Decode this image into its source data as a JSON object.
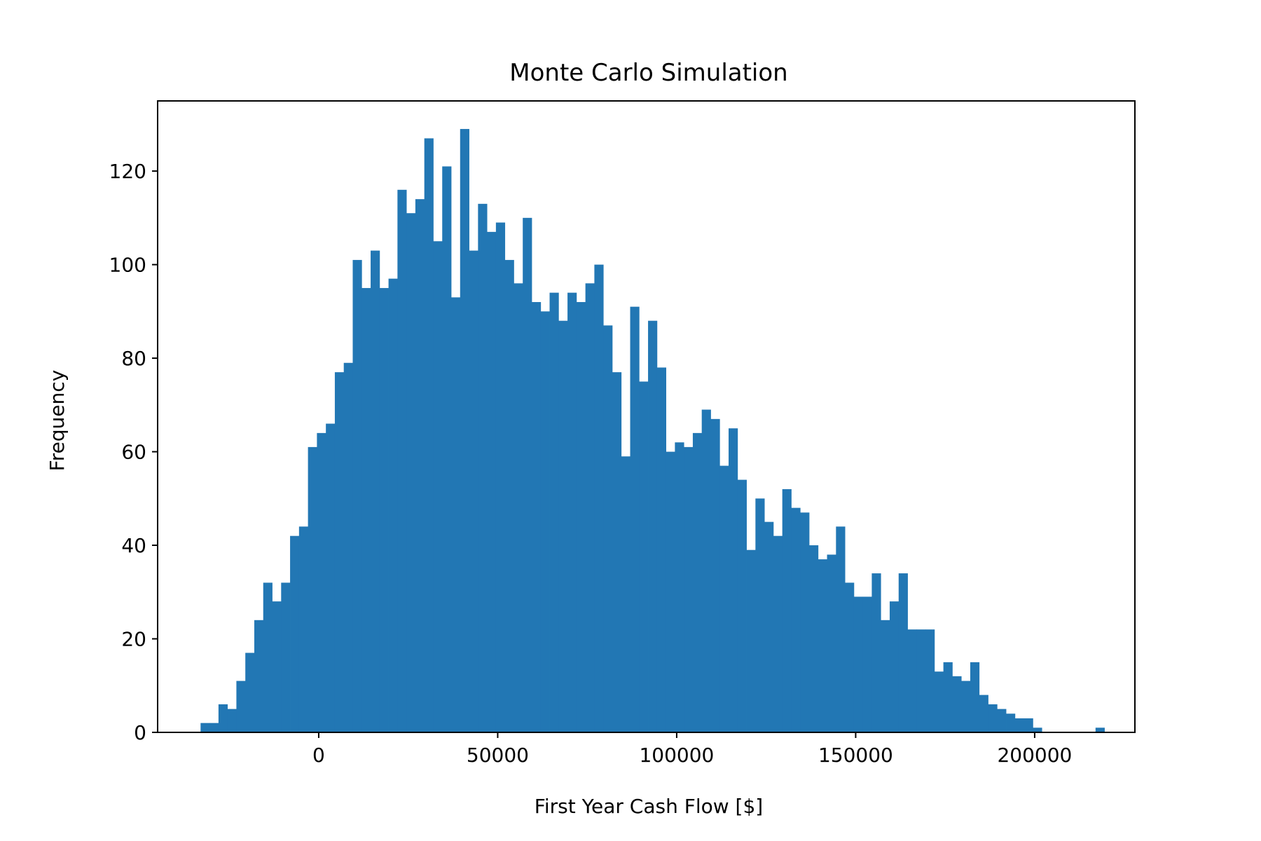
{
  "chart_data": {
    "type": "bar",
    "title": "Monte Carlo Simulation",
    "xlabel": "First Year Cash Flow [$]",
    "ylabel": "Frequency",
    "xlim": [
      -45000,
      228000
    ],
    "ylim": [
      0,
      135
    ],
    "xticks": [
      0,
      50000,
      100000,
      150000,
      200000
    ],
    "xtick_labels": [
      "0",
      "50000",
      "100000",
      "150000",
      "200000"
    ],
    "yticks": [
      0,
      20,
      40,
      60,
      80,
      100,
      120
    ],
    "ytick_labels": [
      "0",
      "20",
      "40",
      "60",
      "80",
      "100",
      "120"
    ],
    "grid": false,
    "color": "#2277b4",
    "bin_start": -33000,
    "bin_width": 2500,
    "values": [
      2,
      2,
      6,
      5,
      11,
      17,
      24,
      32,
      28,
      32,
      42,
      44,
      61,
      64,
      66,
      77,
      79,
      101,
      95,
      103,
      95,
      97,
      116,
      111,
      114,
      127,
      105,
      121,
      93,
      129,
      103,
      113,
      107,
      109,
      101,
      96,
      110,
      92,
      90,
      94,
      88,
      94,
      92,
      96,
      100,
      87,
      77,
      59,
      91,
      75,
      88,
      78,
      60,
      62,
      61,
      64,
      69,
      67,
      57,
      65,
      54,
      39,
      50,
      45,
      42,
      52,
      48,
      47,
      40,
      37,
      38,
      44,
      32,
      29,
      29,
      34,
      24,
      28,
      34,
      22,
      22,
      22,
      13,
      15,
      12,
      11,
      15,
      8,
      6,
      5,
      4,
      3,
      3,
      1,
      0,
      0,
      0,
      0,
      0,
      0,
      1
    ]
  }
}
